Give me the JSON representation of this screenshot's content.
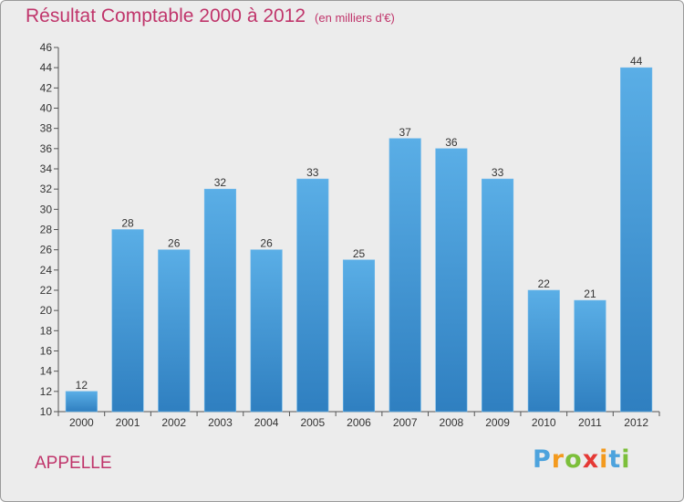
{
  "chart_data": {
    "type": "bar",
    "title": "Résultat Comptable 2000 à 2012",
    "subtitle": "(en milliers d'€)",
    "categories": [
      "2000",
      "2001",
      "2002",
      "2003",
      "2004",
      "2005",
      "2006",
      "2007",
      "2008",
      "2009",
      "2010",
      "2011",
      "2012"
    ],
    "values": [
      12,
      28,
      26,
      32,
      26,
      33,
      25,
      37,
      36,
      33,
      22,
      21,
      44
    ],
    "ylim": [
      10,
      46
    ],
    "yticks": [
      10,
      12,
      14,
      16,
      18,
      20,
      22,
      24,
      26,
      28,
      30,
      32,
      34,
      36,
      38,
      40,
      42,
      44,
      46
    ],
    "xlabel": "",
    "ylabel": "",
    "grid": false,
    "bar_color": "#3a8fd4"
  },
  "footer": {
    "city": "APPELLE",
    "logo_letters": [
      "P",
      "r",
      "o",
      "x",
      "i",
      "t",
      "i"
    ],
    "logo_colors": [
      "#4da3dd",
      "#f39a1e",
      "#7cbf3a",
      "#e53935",
      "#f39a1e",
      "#4da3dd",
      "#7cbf3a"
    ]
  }
}
